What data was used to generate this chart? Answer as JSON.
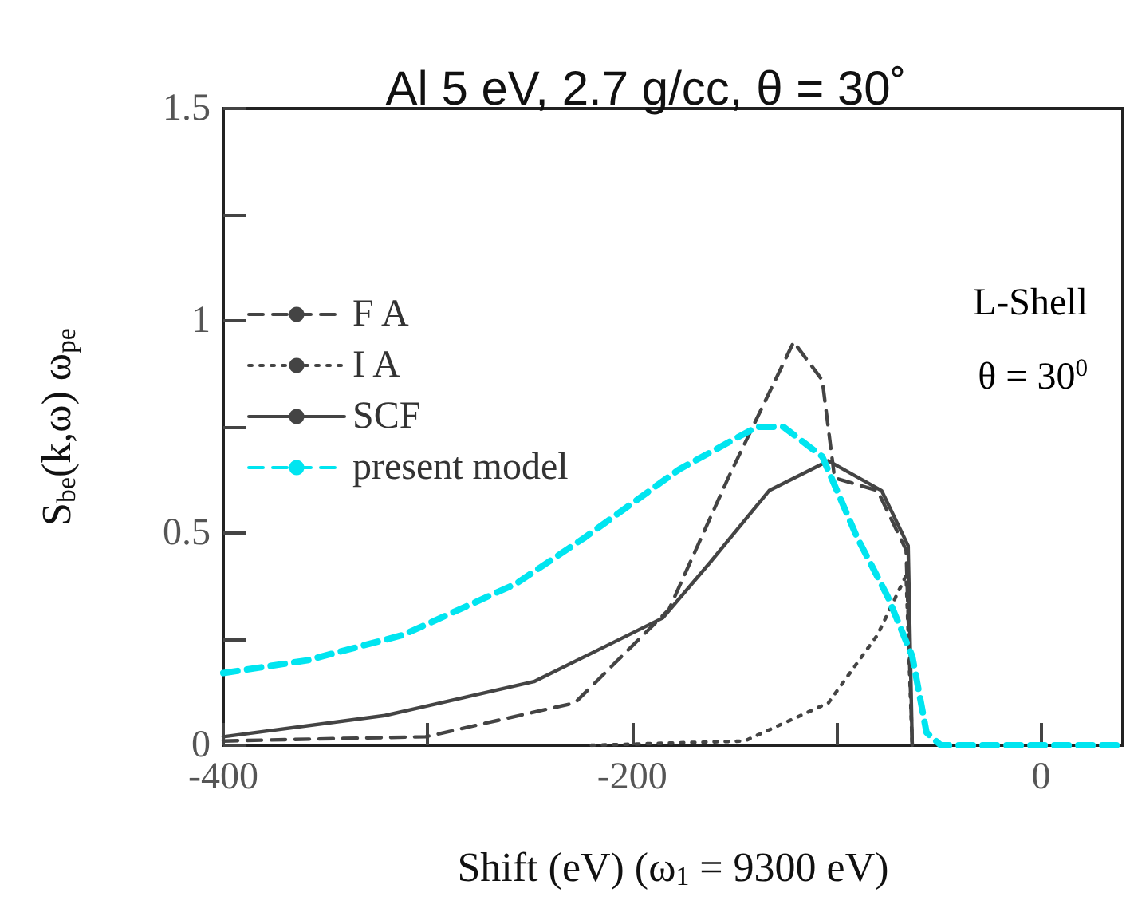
{
  "chart_data": {
    "type": "line",
    "title": "Al 5 eV, 2.7 g/cc, θ = 30˚",
    "xlabel": "Shift (eV) (ω$_{1}$ = 9300 eV)",
    "ylabel": "S$_{be}$(k,ω) ω$_{pe}$",
    "annotations": [
      "L-Shell",
      "θ = 30$^{0}$"
    ],
    "xlim": [
      -400,
      40
    ],
    "xticks": [
      -400,
      {
        "value": -300,
        "label": null
      },
      -200,
      {
        "value": -100,
        "label": null
      },
      0
    ],
    "ylim": [
      0,
      1.5
    ],
    "yticks": [
      0,
      {
        "value": 0.25,
        "label": null
      },
      0.5,
      {
        "value": 0.75,
        "label": null
      },
      1,
      {
        "value": 1.25,
        "label": null
      },
      1.5
    ],
    "grid": false,
    "legend": "top left",
    "marker": "none",
    "series": [
      {
        "name": "F A",
        "color": "#444444",
        "line_style": "dashed",
        "x": [
          -400,
          -301,
          -228,
          -182,
          -153,
          -121,
          -107,
          -101,
          -80,
          -66,
          -63
        ],
        "values": [
          0.01,
          0.02,
          0.1,
          0.32,
          0.63,
          0.95,
          0.86,
          0.63,
          0.6,
          0.46,
          0
        ]
      },
      {
        "name": "I A",
        "color": "#444444",
        "line_style": "dotted",
        "x": [
          -220,
          -145,
          -104,
          -80,
          -66,
          -63
        ],
        "values": [
          0,
          0.01,
          0.1,
          0.26,
          0.4,
          0
        ]
      },
      {
        "name": "SCF",
        "color": "#444444",
        "line_style": "solid",
        "x": [
          -400,
          -321,
          -248,
          -185,
          -162,
          -133,
          -104,
          -78,
          -65,
          -63
        ],
        "values": [
          0.02,
          0.07,
          0.15,
          0.3,
          0.43,
          0.6,
          0.67,
          0.6,
          0.47,
          0
        ]
      },
      {
        "name": "present model",
        "color": "#00e5f0",
        "line_style": "dashed",
        "x": [
          -400,
          -359,
          -312,
          -257,
          -223,
          -177,
          -139,
          -126,
          -107,
          -90,
          -75,
          -63,
          -56,
          -49,
          40
        ],
        "values": [
          0.17,
          0.2,
          0.26,
          0.38,
          0.49,
          0.65,
          0.75,
          0.75,
          0.68,
          0.49,
          0.35,
          0.21,
          0.03,
          0,
          0
        ]
      }
    ]
  }
}
